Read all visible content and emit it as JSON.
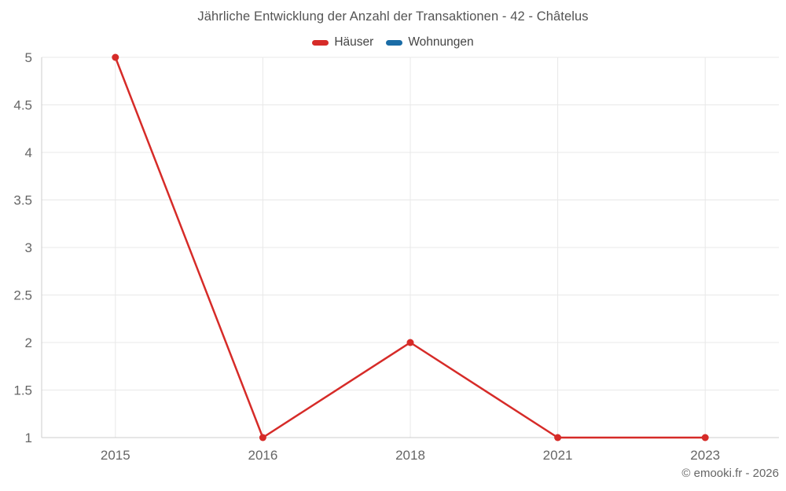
{
  "title": "Jährliche Entwicklung der Anzahl der Transaktionen - 42 - Châtelus",
  "footer": "© emooki.fr - 2026",
  "colors": {
    "series_hauser": "#d62b28",
    "series_wohnungen": "#1a6ca6",
    "grid": "#e8e8e8",
    "axis": "#cccccc",
    "tick_text": "#666666",
    "title_text": "#545454",
    "legend_text": "#444444"
  },
  "chart_data": {
    "type": "line",
    "title": "Jährliche Entwicklung der Anzahl der Transaktionen - 42 - Châtelus",
    "categories": [
      "2015",
      "2016",
      "2018",
      "2021",
      "2023"
    ],
    "series": [
      {
        "name": "Häuser",
        "color": "#d62b28",
        "values": [
          5,
          1,
          2,
          1,
          1
        ]
      },
      {
        "name": "Wohnungen",
        "color": "#1a6ca6",
        "values": []
      }
    ],
    "xlabel": "",
    "ylabel": "",
    "ylim": [
      1,
      5
    ],
    "yticks": [
      1,
      1.5,
      2,
      2.5,
      3,
      3.5,
      4,
      4.5,
      5
    ],
    "grid": true,
    "legend_position": "top"
  }
}
